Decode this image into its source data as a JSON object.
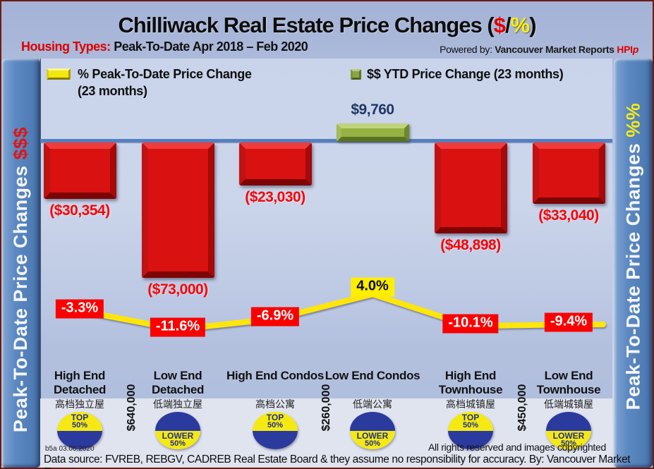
{
  "header": {
    "title_main": "Chilliwack Real Estate Price Changes (",
    "title_dollar": "$",
    "title_slash": "/",
    "title_percent": "%",
    "title_close": ")",
    "subtitle_label": "Housing Types:",
    "subtitle_text": " Peak-To-Date Apr 2018 – Feb 2020",
    "powered_by": "Powered by: ",
    "powered_brand": "Vancouver Market Reports ",
    "powered_hpi_main": "HPI",
    "powered_hpi_sub": "p"
  },
  "sidebars": {
    "left_text": "Peak-To-Date Price Changes ",
    "left_suffix": "$$$",
    "right_text": "Peak-To-Date Price Changes ",
    "right_suffix": "%%"
  },
  "legend": {
    "percent_label": "% Peak-To-Date Price Change (23 months)",
    "dollar_label": "$$ YTD Price Change (23 months)"
  },
  "chart_data": {
    "type": "combo bar + line (waterfall-style $ bars with % line overlay)",
    "title": "Chilliwack Real Estate Price Changes ($/%)",
    "period": "Peak-To-Date Apr 2018 – Feb 2020",
    "categories": [
      "High End Detached",
      "Low End Detached",
      "High End Condos",
      "Low End Condos",
      "High End Townhouse",
      "Low End Townhouse"
    ],
    "categories_zh": [
      "高档独立屋",
      "低端独立屋",
      "高档公寓",
      "低端公寓",
      "高档城镇屋",
      "低端城镇屋"
    ],
    "series": [
      {
        "name": "$$ YTD Price Change (23 months)",
        "values": [
          -30354,
          -73000,
          -23030,
          9760,
          -48898,
          -33040
        ],
        "labels": [
          "($30,354)",
          "($73,000)",
          "($23,030)",
          "$9,760",
          "($48,898)",
          "($33,040)"
        ],
        "color_negative": "#d91111",
        "color_positive": "#95b243"
      },
      {
        "name": "% Peak-To-Date Price Change (23 months)",
        "values": [
          -3.3,
          -11.6,
          -6.9,
          4.0,
          -10.1,
          -9.4
        ],
        "labels": [
          "-3.3%",
          "-11.6%",
          "-6.9%",
          "4.0%",
          "-10.1%",
          "-9.4%"
        ],
        "color": "#ffe60a"
      }
    ],
    "badges": [
      {
        "line1": "TOP",
        "line2": "50%",
        "position": "top"
      },
      {
        "line1": "LOWER",
        "line2": "50%",
        "position": "bottom"
      },
      {
        "line1": "TOP",
        "line2": "50%",
        "position": "top"
      },
      {
        "line1": "LOWER",
        "line2": "50%",
        "position": "bottom"
      },
      {
        "line1": "TOP",
        "line2": "50%",
        "position": "top"
      },
      {
        "line1": "LOWER",
        "line2": "50%",
        "position": "bottom"
      }
    ],
    "price_thresholds": [
      {
        "label": "$640,000",
        "between": [
          0,
          1
        ]
      },
      {
        "label": "$260,000",
        "between": [
          2,
          3
        ]
      },
      {
        "label": "$450,000",
        "between": [
          4,
          5
        ]
      }
    ],
    "axis": {
      "baseline_value": 0,
      "gridlines": false,
      "legend_position": "top"
    },
    "colors": {
      "bar_red": "#d91111",
      "bar_green": "#95b243",
      "line_yellow": "#ffe60a",
      "pct_label_bg_neg": "#fb0000",
      "pct_label_bg_pos": "#ffee00",
      "value_text_red": "#f70505",
      "value_text_navy": "#1f3864",
      "badge_navy": "#2b3a9d",
      "badge_yellow": "#f5e913",
      "axis_blue": "#567fc0"
    }
  },
  "footer": {
    "version": "b5a 03.06.2020",
    "rights": "All rights reserved and  images copyrighted",
    "source": "Data source: FVREB, REBGV, CADREB Real Estate Board & they assume no responsibility for accuracy. By: Vancouver Market Reports"
  }
}
